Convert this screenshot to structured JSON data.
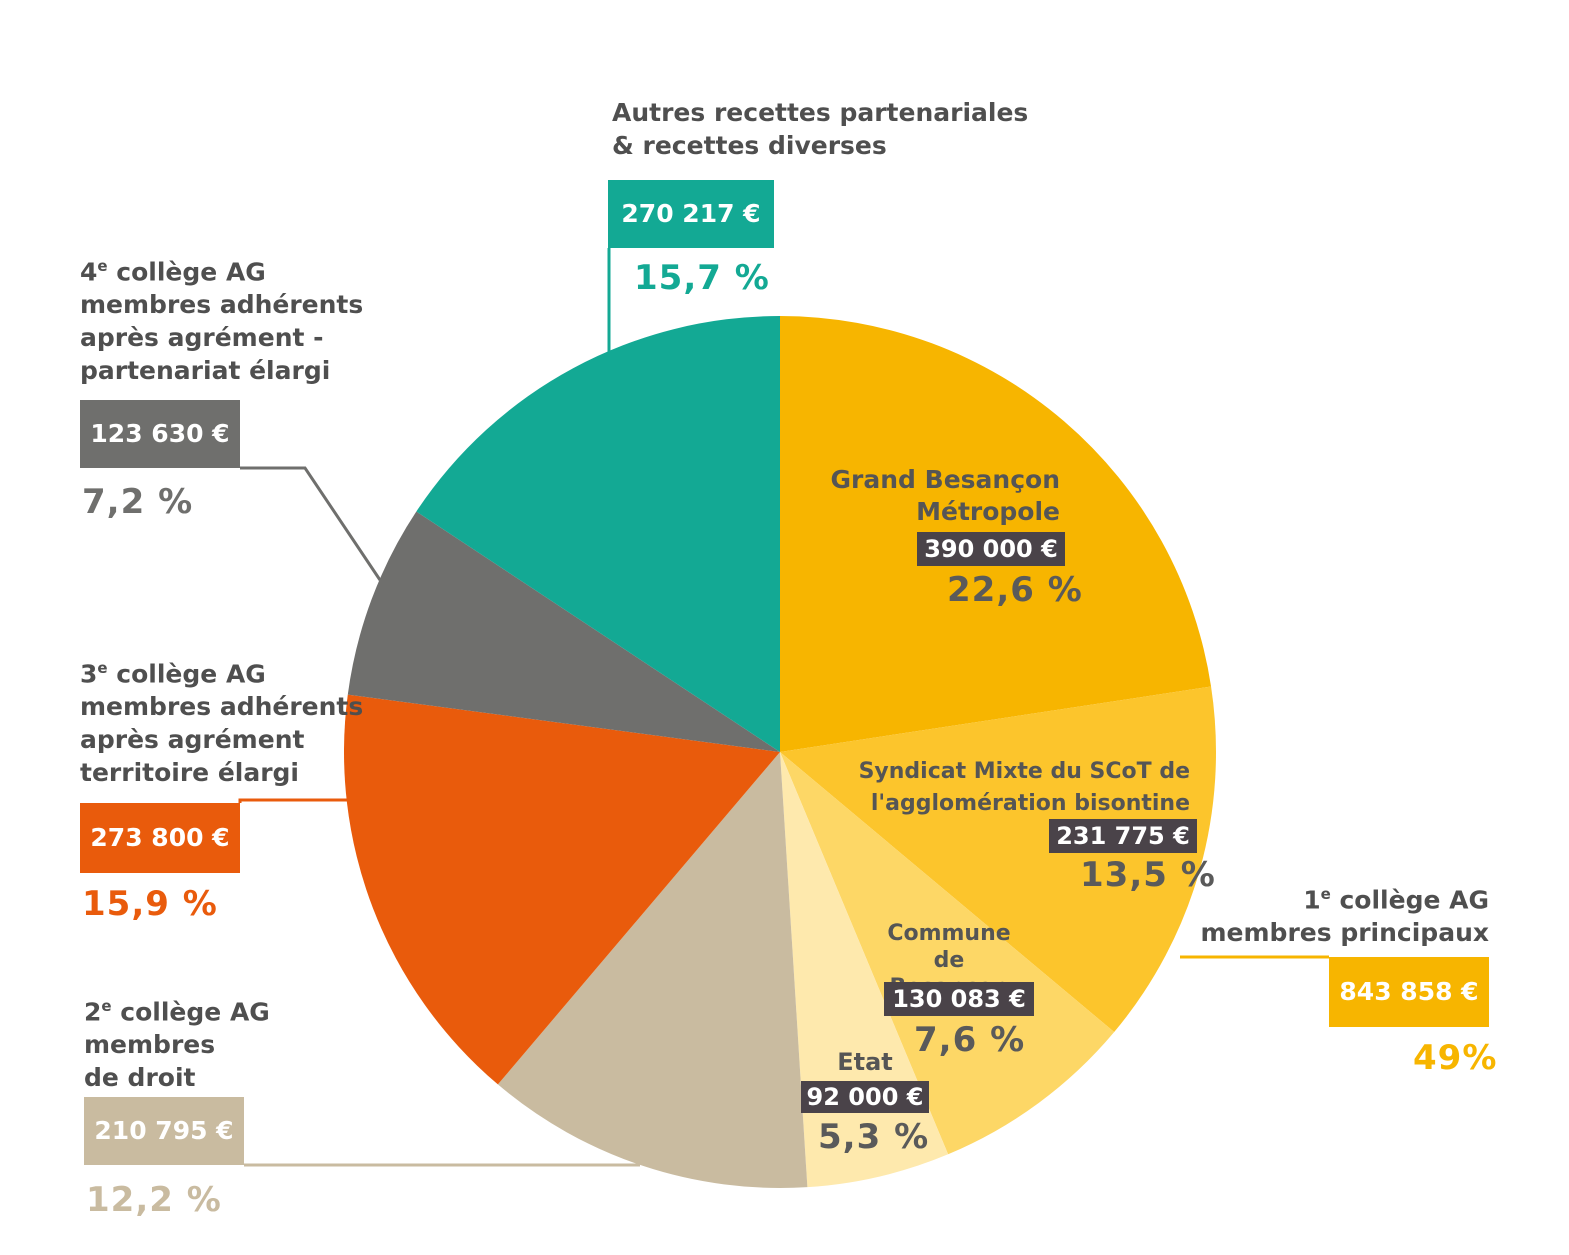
{
  "chart_data": {
    "type": "pie",
    "slices": [
      {
        "label": "Grand Besançon\nMétropole",
        "amount": "390 000 €",
        "value": 22.6,
        "percent_label": "22,6 %",
        "color": "#f7b500"
      },
      {
        "label": "Syndicat Mixte du SCoT de\nl'agglomération bisontine",
        "amount": "231 775 €",
        "value": 13.5,
        "percent_label": "13,5 %",
        "color": "#fcc52c"
      },
      {
        "label": "Commune\nde Besançon",
        "amount": "130 083 €",
        "value": 7.6,
        "percent_label": "7,6 %",
        "color": "#fdd766"
      },
      {
        "label": "Etat",
        "amount": "92 000 €",
        "value": 5.3,
        "percent_label": "5,3 %",
        "color": "#fee9ad"
      },
      {
        "label": "2e collège AG\nmembres\nde droit",
        "amount": "210 795 €",
        "value": 12.2,
        "percent_label": "12,2 %",
        "color": "#c9bba0"
      },
      {
        "label": "3e collège AG\nmembres adhérents\naprès agrément\nterritoire élargi",
        "amount": "273 800 €",
        "value": 15.9,
        "percent_label": "15,9 %",
        "color": "#e95b0c"
      },
      {
        "label": "4e collège AG\nmembres adhérents\naprès agrément -\npartenariat élargi",
        "amount": "123 630 €",
        "value": 7.2,
        "percent_label": "7,2 %",
        "color": "#6f6f6d"
      },
      {
        "label": "Autres recettes partenariales\n& recettes diverses",
        "amount": "270 217 €",
        "value": 15.7,
        "percent_label": "15,7 %",
        "color": "#13a994"
      }
    ],
    "groups": [
      {
        "label": "1e collège AG\nmembres principaux",
        "amount": "843 858 €",
        "percent_label": "49%",
        "color": "#f7b500"
      }
    ]
  }
}
